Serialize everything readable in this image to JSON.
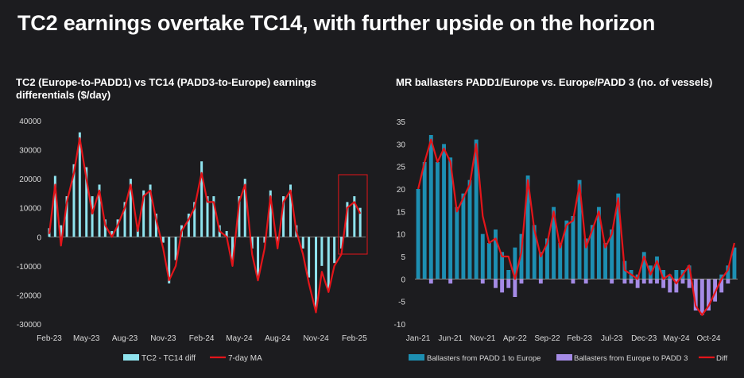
{
  "page": {
    "title": "TC2 earnings overtake TC14, with further upside on the horizon"
  },
  "chart_data": [
    {
      "type": "bar",
      "title": "TC2 (Europe-to-PADD1) vs TC14 (PADD3-to-Europe) earnings differentials ($/day)",
      "x_ticks": [
        "Feb-23",
        "May-23",
        "Aug-23",
        "Nov-23",
        "Feb-24",
        "May-24",
        "Aug-24",
        "Nov-24",
        "Feb-25"
      ],
      "ylim": [
        -30000,
        40000
      ],
      "y_ticks": [
        -30000,
        -20000,
        -10000,
        0,
        10000,
        20000,
        30000,
        40000
      ],
      "legend": [
        "TC2 - TC14 diff",
        "7-day MA"
      ],
      "legend_position": "bottom",
      "highlight_box_period": "Jan-25 to Feb-25",
      "colors": {
        "bars": "#8fe3ee",
        "line": "#e3151a",
        "box": "#e3151a"
      },
      "series": [
        {
          "name": "TC2 - TC14 diff",
          "type": "bar",
          "x": [
            "2023-02-01",
            "2023-02-15",
            "2023-03-01",
            "2023-03-15",
            "2023-04-01",
            "2023-04-15",
            "2023-05-01",
            "2023-05-15",
            "2023-06-01",
            "2023-06-15",
            "2023-07-01",
            "2023-07-15",
            "2023-08-01",
            "2023-08-15",
            "2023-09-01",
            "2023-09-15",
            "2023-10-01",
            "2023-10-15",
            "2023-11-01",
            "2023-11-15",
            "2023-12-01",
            "2023-12-15",
            "2024-01-01",
            "2024-01-15",
            "2024-02-01",
            "2024-02-15",
            "2024-03-01",
            "2024-03-15",
            "2024-04-01",
            "2024-04-15",
            "2024-05-01",
            "2024-05-15",
            "2024-06-01",
            "2024-06-15",
            "2024-07-01",
            "2024-07-15",
            "2024-08-01",
            "2024-08-15",
            "2024-09-01",
            "2024-09-15",
            "2024-10-01",
            "2024-10-15",
            "2024-11-01",
            "2024-11-15",
            "2024-12-01",
            "2024-12-15",
            "2025-01-01",
            "2025-01-15",
            "2025-02-01",
            "2025-02-15"
          ],
          "values": [
            3000,
            21000,
            4000,
            14000,
            25000,
            36000,
            24000,
            14000,
            18000,
            6000,
            2000,
            6000,
            12000,
            20000,
            4000,
            16000,
            18000,
            8000,
            -2000,
            -16000,
            -8000,
            4000,
            8000,
            12000,
            26000,
            14000,
            14000,
            4000,
            2000,
            -8000,
            14000,
            20000,
            -4000,
            -14000,
            -2000,
            16000,
            -2000,
            14000,
            18000,
            4000,
            -4000,
            -14000,
            -25000,
            -10000,
            -18000,
            -9000,
            -4000,
            12000,
            14000,
            10000
          ]
        },
        {
          "name": "7-day MA",
          "type": "line",
          "x": [
            "2023-02-01",
            "2023-02-15",
            "2023-03-01",
            "2023-03-15",
            "2023-04-01",
            "2023-04-15",
            "2023-05-01",
            "2023-05-15",
            "2023-06-01",
            "2023-06-15",
            "2023-07-01",
            "2023-07-15",
            "2023-08-01",
            "2023-08-15",
            "2023-09-01",
            "2023-09-15",
            "2023-10-01",
            "2023-10-15",
            "2023-11-01",
            "2023-11-15",
            "2023-12-01",
            "2023-12-15",
            "2024-01-01",
            "2024-01-15",
            "2024-02-01",
            "2024-02-15",
            "2024-03-01",
            "2024-03-15",
            "2024-04-01",
            "2024-04-15",
            "2024-05-01",
            "2024-05-15",
            "2024-06-01",
            "2024-06-15",
            "2024-07-01",
            "2024-07-15",
            "2024-08-01",
            "2024-08-15",
            "2024-09-01",
            "2024-09-15",
            "2024-10-01",
            "2024-10-15",
            "2024-11-01",
            "2024-11-15",
            "2024-12-01",
            "2024-12-15",
            "2025-01-01",
            "2025-01-15",
            "2025-02-01",
            "2025-02-15"
          ],
          "values": [
            1000,
            18000,
            -3000,
            12000,
            22000,
            34000,
            20000,
            8000,
            16000,
            4000,
            0,
            4000,
            10000,
            18000,
            2000,
            14000,
            16000,
            6000,
            -4000,
            -15000,
            -10000,
            2000,
            6000,
            10000,
            22000,
            12000,
            12000,
            2000,
            0,
            -10000,
            12000,
            18000,
            -6000,
            -15000,
            -4000,
            14000,
            -4000,
            12000,
            16000,
            2000,
            -6000,
            -16000,
            -26000,
            -12000,
            -19000,
            -10000,
            -6000,
            10000,
            12000,
            8000
          ]
        }
      ]
    },
    {
      "type": "bar",
      "title": "MR ballasters PADD1/Europe vs. Europe/PADD 3 (no. of vessels)",
      "x_ticks": [
        "Jan-21",
        "Jun-21",
        "Nov-21",
        "Apr-22",
        "Sep-22",
        "Feb-23",
        "Jul-23",
        "Dec-23",
        "May-24",
        "Oct-24"
      ],
      "ylim": [
        -10,
        35
      ],
      "y_ticks": [
        -10,
        -5,
        0,
        5,
        10,
        15,
        20,
        25,
        30,
        35
      ],
      "legend": [
        "Ballasters from PADD 1 to Europe",
        "Ballasters from Europe to PADD 3",
        "Diff"
      ],
      "legend_position": "bottom",
      "colors": {
        "padd1": "#1d8fb2",
        "europe": "#a58be6",
        "diff": "#e3151a"
      },
      "months": [
        "2021-01",
        "2021-02",
        "2021-03",
        "2021-04",
        "2021-05",
        "2021-06",
        "2021-07",
        "2021-08",
        "2021-09",
        "2021-10",
        "2021-11",
        "2021-12",
        "2022-01",
        "2022-02",
        "2022-03",
        "2022-04",
        "2022-05",
        "2022-06",
        "2022-07",
        "2022-08",
        "2022-09",
        "2022-10",
        "2022-11",
        "2022-12",
        "2023-01",
        "2023-02",
        "2023-03",
        "2023-04",
        "2023-05",
        "2023-06",
        "2023-07",
        "2023-08",
        "2023-09",
        "2023-10",
        "2023-11",
        "2023-12",
        "2024-01",
        "2024-02",
        "2024-03",
        "2024-04",
        "2024-05",
        "2024-06",
        "2024-07",
        "2024-08",
        "2024-09",
        "2024-10",
        "2024-11",
        "2024-12",
        "2025-01",
        "2025-02"
      ],
      "series": [
        {
          "name": "Ballasters from PADD 1 to Europe",
          "type": "bar",
          "values": [
            20,
            26,
            32,
            26,
            30,
            27,
            16,
            19,
            22,
            31,
            10,
            8,
            11,
            6,
            2,
            7,
            10,
            23,
            12,
            6,
            9,
            16,
            8,
            13,
            14,
            22,
            9,
            12,
            16,
            8,
            11,
            19,
            4,
            2,
            1,
            6,
            3,
            5,
            2,
            1,
            2,
            2,
            3,
            0,
            0,
            0,
            0,
            1,
            3,
            7
          ]
        },
        {
          "name": "Ballasters from Europe to PADD 3",
          "type": "bar",
          "values": [
            0,
            0,
            -1,
            0,
            0,
            -1,
            0,
            0,
            0,
            0,
            -1,
            0,
            -2,
            -3,
            -2,
            -4,
            -1,
            0,
            0,
            -1,
            0,
            0,
            0,
            0,
            -1,
            0,
            -1,
            0,
            0,
            0,
            -1,
            0,
            -1,
            -1,
            -2,
            -1,
            -1,
            -1,
            -2,
            -3,
            -3,
            -1,
            -2,
            -7,
            -8,
            -7,
            -5,
            -3,
            -1,
            0
          ]
        },
        {
          "name": "Diff",
          "type": "line",
          "values": [
            20,
            26,
            31,
            26,
            29,
            26,
            15,
            18,
            21,
            30,
            14,
            8,
            9,
            5,
            5,
            0,
            6,
            22,
            11,
            5,
            8,
            15,
            7,
            12,
            13,
            21,
            7,
            11,
            15,
            7,
            10,
            18,
            2,
            1,
            0,
            5,
            1,
            4,
            0,
            1,
            -1,
            1,
            3,
            -6,
            -8,
            -6,
            -3,
            0,
            2,
            8
          ]
        }
      ]
    }
  ]
}
